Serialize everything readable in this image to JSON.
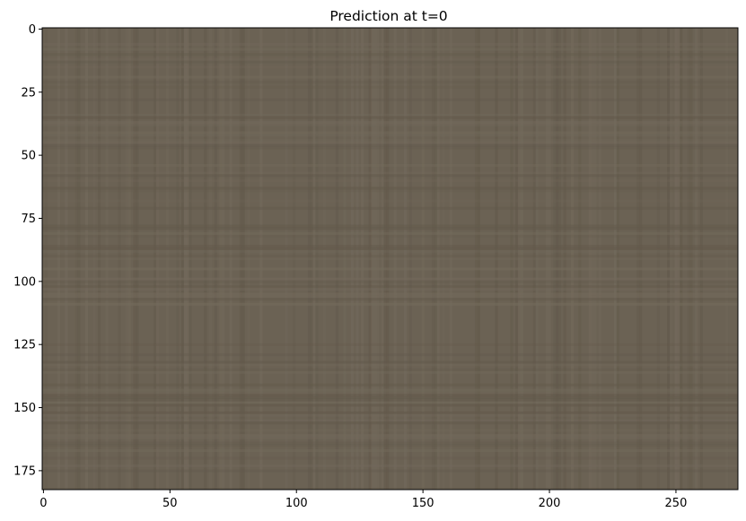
{
  "chart_data": {
    "type": "heatmap",
    "title": "Prediction at t=0",
    "xlabel": "",
    "ylabel": "",
    "image_width": 275,
    "image_height": 183,
    "xlim": [
      -0.5,
      274.5
    ],
    "ylim": [
      182.5,
      -0.5
    ],
    "x_ticks": [
      0,
      50,
      100,
      150,
      200,
      250
    ],
    "y_ticks": [
      0,
      25,
      50,
      75,
      100,
      125,
      150,
      175
    ],
    "grid": false,
    "legend": "none",
    "base_color": "#6b6254",
    "description_colors": {
      "light_stripe": "#736a5c",
      "dark_stripe": "#62594b"
    }
  }
}
